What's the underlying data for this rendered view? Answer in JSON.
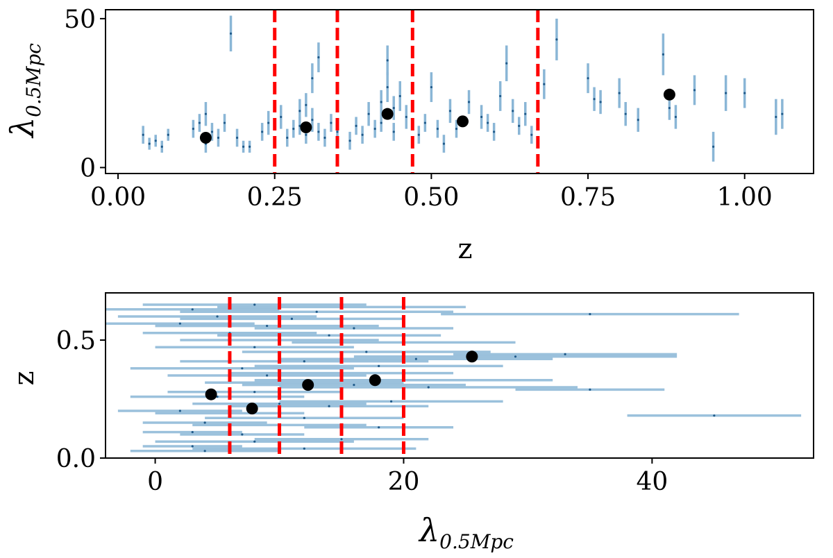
{
  "chart_data": [
    {
      "type": "scatter",
      "name": "top-panel",
      "xlabel": "z",
      "ylabel": {
        "symbol": "λ",
        "subscript": "0.5Mpc"
      },
      "xlim": [
        -0.02,
        1.11
      ],
      "ylim": [
        -2,
        53
      ],
      "xticks": [
        0.0,
        0.25,
        0.5,
        0.75,
        1.0
      ],
      "xtick_labels": [
        "0.00",
        "0.25",
        "0.50",
        "0.75",
        "1.00"
      ],
      "yticks": [
        0,
        50
      ],
      "ytick_labels": [
        "0",
        "50"
      ],
      "bin_edges": [
        0.25,
        0.35,
        0.47,
        0.67
      ],
      "bin_means": [
        {
          "x": 0.14,
          "y": 10
        },
        {
          "x": 0.3,
          "y": 13.5
        },
        {
          "x": 0.43,
          "y": 18
        },
        {
          "x": 0.55,
          "y": 15.5
        },
        {
          "x": 0.88,
          "y": 24.5
        }
      ],
      "points": [
        {
          "x": 0.04,
          "y": 11,
          "err": 3
        },
        {
          "x": 0.05,
          "y": 8,
          "err": 2
        },
        {
          "x": 0.06,
          "y": 9,
          "err": 2
        },
        {
          "x": 0.07,
          "y": 7,
          "err": 2
        },
        {
          "x": 0.08,
          "y": 11,
          "err": 2
        },
        {
          "x": 0.12,
          "y": 13,
          "err": 3
        },
        {
          "x": 0.13,
          "y": 15,
          "err": 3
        },
        {
          "x": 0.14,
          "y": 18,
          "err": 4
        },
        {
          "x": 0.14,
          "y": 8,
          "err": 3
        },
        {
          "x": 0.15,
          "y": 12,
          "err": 3
        },
        {
          "x": 0.16,
          "y": 10,
          "err": 3
        },
        {
          "x": 0.17,
          "y": 15,
          "err": 3
        },
        {
          "x": 0.18,
          "y": 45,
          "err": 6
        },
        {
          "x": 0.19,
          "y": 10,
          "err": 3
        },
        {
          "x": 0.2,
          "y": 7,
          "err": 2
        },
        {
          "x": 0.21,
          "y": 7,
          "err": 2
        },
        {
          "x": 0.23,
          "y": 12,
          "err": 3
        },
        {
          "x": 0.24,
          "y": 15,
          "err": 4
        },
        {
          "x": 0.26,
          "y": 17,
          "err": 4
        },
        {
          "x": 0.27,
          "y": 10,
          "err": 3
        },
        {
          "x": 0.28,
          "y": 13,
          "err": 3
        },
        {
          "x": 0.29,
          "y": 19,
          "err": 4
        },
        {
          "x": 0.29,
          "y": 14,
          "err": 3
        },
        {
          "x": 0.3,
          "y": 11,
          "err": 3
        },
        {
          "x": 0.3,
          "y": 21,
          "err": 4
        },
        {
          "x": 0.31,
          "y": 30,
          "err": 5
        },
        {
          "x": 0.31,
          "y": 16,
          "err": 4
        },
        {
          "x": 0.32,
          "y": 12,
          "err": 3
        },
        {
          "x": 0.32,
          "y": 37,
          "err": 5
        },
        {
          "x": 0.33,
          "y": 10,
          "err": 3
        },
        {
          "x": 0.34,
          "y": 15,
          "err": 3
        },
        {
          "x": 0.35,
          "y": 12,
          "err": 3
        },
        {
          "x": 0.37,
          "y": 9,
          "err": 3
        },
        {
          "x": 0.38,
          "y": 14,
          "err": 3
        },
        {
          "x": 0.39,
          "y": 11,
          "err": 3
        },
        {
          "x": 0.4,
          "y": 18,
          "err": 4
        },
        {
          "x": 0.41,
          "y": 13,
          "err": 3
        },
        {
          "x": 0.42,
          "y": 15,
          "err": 3
        },
        {
          "x": 0.42,
          "y": 22,
          "err": 4
        },
        {
          "x": 0.43,
          "y": 36,
          "err": 5
        },
        {
          "x": 0.43,
          "y": 27,
          "err": 5
        },
        {
          "x": 0.44,
          "y": 20,
          "err": 4
        },
        {
          "x": 0.44,
          "y": 12,
          "err": 3
        },
        {
          "x": 0.45,
          "y": 24,
          "err": 5
        },
        {
          "x": 0.46,
          "y": 17,
          "err": 4
        },
        {
          "x": 0.48,
          "y": 11,
          "err": 3
        },
        {
          "x": 0.49,
          "y": 15,
          "err": 3
        },
        {
          "x": 0.5,
          "y": 27,
          "err": 5
        },
        {
          "x": 0.51,
          "y": 13,
          "err": 3
        },
        {
          "x": 0.52,
          "y": 8,
          "err": 3
        },
        {
          "x": 0.53,
          "y": 19,
          "err": 4
        },
        {
          "x": 0.54,
          "y": 13,
          "err": 3
        },
        {
          "x": 0.56,
          "y": 22,
          "err": 4
        },
        {
          "x": 0.58,
          "y": 17,
          "err": 4
        },
        {
          "x": 0.59,
          "y": 15,
          "err": 3
        },
        {
          "x": 0.6,
          "y": 12,
          "err": 3
        },
        {
          "x": 0.61,
          "y": 24,
          "err": 5
        },
        {
          "x": 0.62,
          "y": 35,
          "err": 6
        },
        {
          "x": 0.63,
          "y": 19,
          "err": 4
        },
        {
          "x": 0.64,
          "y": 14,
          "err": 3
        },
        {
          "x": 0.65,
          "y": 18,
          "err": 4
        },
        {
          "x": 0.66,
          "y": 11,
          "err": 3
        },
        {
          "x": 0.68,
          "y": 28,
          "err": 5
        },
        {
          "x": 0.7,
          "y": 43,
          "err": 7
        },
        {
          "x": 0.75,
          "y": 30,
          "err": 5
        },
        {
          "x": 0.76,
          "y": 23,
          "err": 4
        },
        {
          "x": 0.77,
          "y": 22,
          "err": 4
        },
        {
          "x": 0.8,
          "y": 25,
          "err": 5
        },
        {
          "x": 0.81,
          "y": 18,
          "err": 4
        },
        {
          "x": 0.83,
          "y": 16,
          "err": 4
        },
        {
          "x": 0.87,
          "y": 38,
          "err": 7
        },
        {
          "x": 0.88,
          "y": 20,
          "err": 4
        },
        {
          "x": 0.89,
          "y": 17,
          "err": 4
        },
        {
          "x": 0.92,
          "y": 26,
          "err": 5
        },
        {
          "x": 0.95,
          "y": 7,
          "err": 5
        },
        {
          "x": 0.97,
          "y": 25,
          "err": 6
        },
        {
          "x": 1.0,
          "y": 25,
          "err": 5
        },
        {
          "x": 1.05,
          "y": 17,
          "err": 6
        },
        {
          "x": 1.06,
          "y": 18,
          "err": 5
        }
      ]
    },
    {
      "type": "scatter",
      "name": "bottom-panel",
      "xlabel": {
        "symbol": "λ",
        "subscript": "0.5Mpc"
      },
      "ylabel": "z",
      "xlim": [
        -4,
        53
      ],
      "ylim": [
        0,
        0.7
      ],
      "xticks": [
        0,
        20,
        40
      ],
      "xtick_labels": [
        "0",
        "20",
        "40"
      ],
      "yticks": [
        0.0,
        0.5
      ],
      "ytick_labels": [
        "0.0",
        "0.5"
      ],
      "bin_edges": [
        6,
        10,
        15,
        20
      ],
      "bin_means": [
        {
          "x": 4.5,
          "y": 0.27
        },
        {
          "x": 7.8,
          "y": 0.21
        },
        {
          "x": 12.3,
          "y": 0.31
        },
        {
          "x": 17.7,
          "y": 0.33
        },
        {
          "x": 25.5,
          "y": 0.43
        }
      ],
      "points": [
        {
          "x": 3,
          "y": 0.63,
          "err": 7
        },
        {
          "x": 8,
          "y": 0.65,
          "err": 9
        },
        {
          "x": 15,
          "y": 0.64,
          "err": 10
        },
        {
          "x": 13,
          "y": 0.62,
          "err": 11
        },
        {
          "x": 35,
          "y": 0.61,
          "err": 12
        },
        {
          "x": 5,
          "y": 0.6,
          "err": 8
        },
        {
          "x": 11,
          "y": 0.59,
          "err": 9
        },
        {
          "x": 2,
          "y": 0.57,
          "err": 6
        },
        {
          "x": 9,
          "y": 0.56,
          "err": 9
        },
        {
          "x": 16,
          "y": 0.55,
          "err": 8
        },
        {
          "x": 6,
          "y": 0.53,
          "err": 7
        },
        {
          "x": 14,
          "y": 0.52,
          "err": 9
        },
        {
          "x": 10,
          "y": 0.5,
          "err": 8
        },
        {
          "x": 20,
          "y": 0.49,
          "err": 9
        },
        {
          "x": 8,
          "y": 0.47,
          "err": 8
        },
        {
          "x": 17,
          "y": 0.45,
          "err": 10
        },
        {
          "x": 33,
          "y": 0.44,
          "err": 9
        },
        {
          "x": 29,
          "y": 0.43,
          "err": 13
        },
        {
          "x": 21,
          "y": 0.42,
          "err": 11
        },
        {
          "x": 12,
          "y": 0.41,
          "err": 10
        },
        {
          "x": 18,
          "y": 0.39,
          "err": 10
        },
        {
          "x": 7,
          "y": 0.38,
          "err": 9
        },
        {
          "x": 15,
          "y": 0.36,
          "err": 9
        },
        {
          "x": 9,
          "y": 0.35,
          "err": 8
        },
        {
          "x": 20,
          "y": 0.33,
          "err": 12
        },
        {
          "x": 12,
          "y": 0.32,
          "err": 8
        },
        {
          "x": 16,
          "y": 0.31,
          "err": 9
        },
        {
          "x": 35,
          "y": 0.29,
          "err": 6
        },
        {
          "x": 22,
          "y": 0.3,
          "err": 12
        },
        {
          "x": 8,
          "y": 0.28,
          "err": 7
        },
        {
          "x": 5,
          "y": 0.26,
          "err": 7
        },
        {
          "x": 19,
          "y": 0.24,
          "err": 9
        },
        {
          "x": 10,
          "y": 0.23,
          "err": 7
        },
        {
          "x": 14,
          "y": 0.22,
          "err": 8
        },
        {
          "x": 2,
          "y": 0.2,
          "err": 5
        },
        {
          "x": 6,
          "y": 0.19,
          "err": 6
        },
        {
          "x": 45,
          "y": 0.18,
          "err": 7
        },
        {
          "x": 12,
          "y": 0.17,
          "err": 8
        },
        {
          "x": 4,
          "y": 0.15,
          "err": 5
        },
        {
          "x": 10,
          "y": 0.14,
          "err": 7
        },
        {
          "x": 18,
          "y": 0.13,
          "err": 6
        },
        {
          "x": 3,
          "y": 0.11,
          "err": 4
        },
        {
          "x": 7,
          "y": 0.1,
          "err": 5
        },
        {
          "x": 15,
          "y": 0.08,
          "err": 7
        },
        {
          "x": 8,
          "y": 0.07,
          "err": 8
        },
        {
          "x": 3,
          "y": 0.05,
          "err": 4
        },
        {
          "x": 12,
          "y": 0.04,
          "err": 9
        },
        {
          "x": 4,
          "y": 0.03,
          "err": 6
        }
      ]
    }
  ],
  "colors": {
    "errorbar": "#8ab6d6",
    "errorbar_dark": "#5d96c2",
    "marker": "#1f5a8a",
    "bin_edge": "#ff0000",
    "bin_mean": "#000000"
  }
}
